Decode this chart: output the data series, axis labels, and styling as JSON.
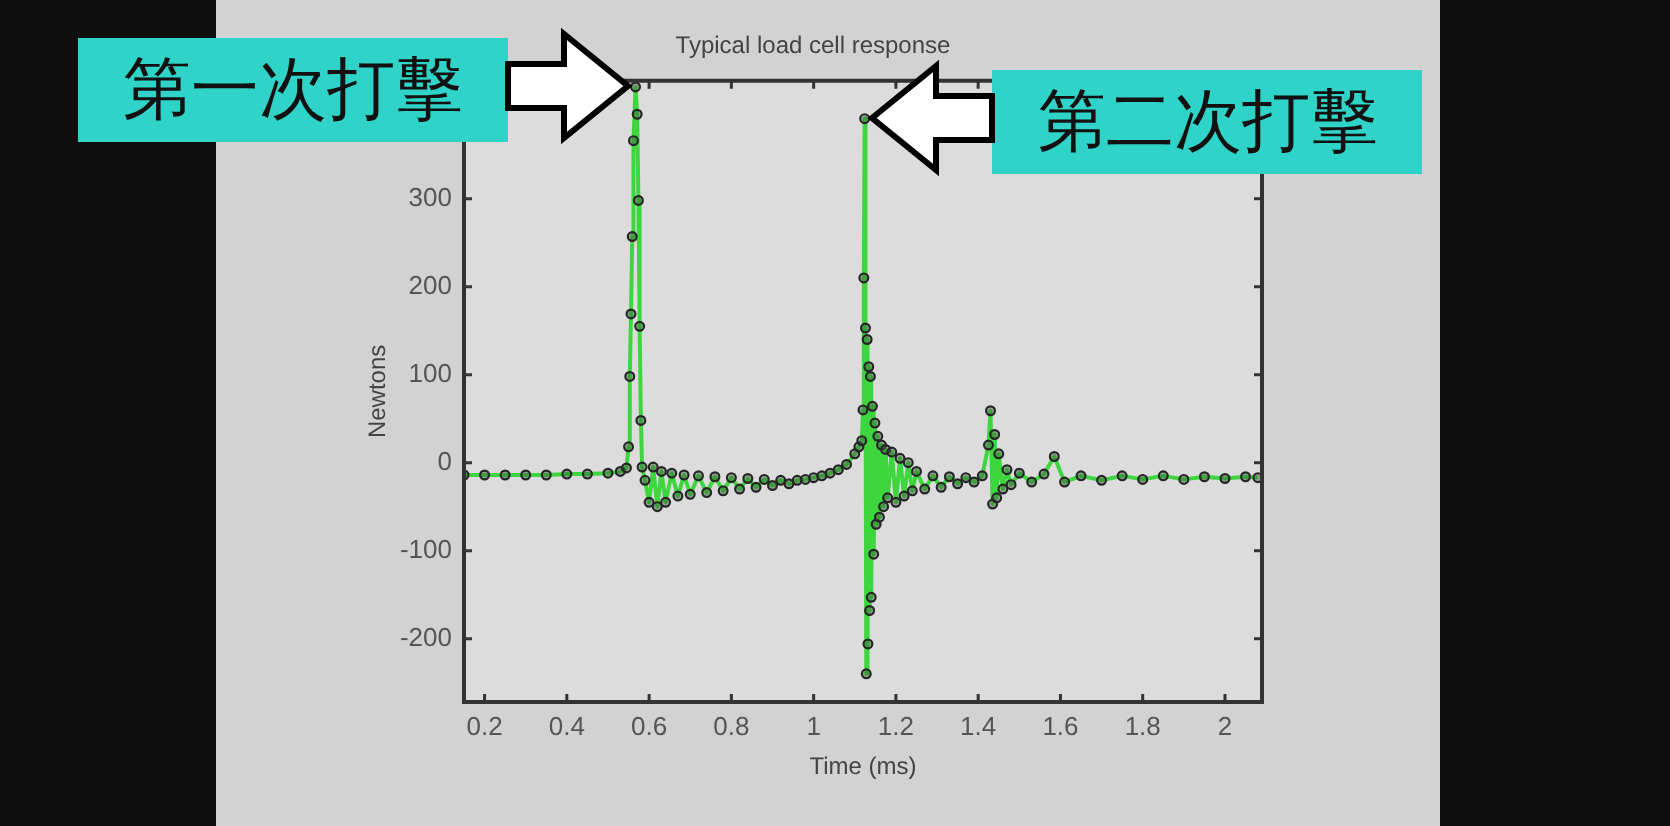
{
  "chart_data": {
    "type": "line",
    "title": "Typical load cell response",
    "xlabel": "Time (ms)",
    "ylabel": "Newtons",
    "x": [
      0.15,
      0.2,
      0.25,
      0.3,
      0.35,
      0.4,
      0.45,
      0.5,
      0.53,
      0.545,
      0.55,
      0.553,
      0.556,
      0.559,
      0.562,
      0.567,
      0.571,
      0.574,
      0.577,
      0.58,
      0.583,
      0.59,
      0.6,
      0.61,
      0.62,
      0.63,
      0.64,
      0.655,
      0.67,
      0.685,
      0.7,
      0.72,
      0.74,
      0.76,
      0.78,
      0.8,
      0.82,
      0.84,
      0.86,
      0.88,
      0.9,
      0.92,
      0.94,
      0.96,
      0.98,
      1,
      1.02,
      1.04,
      1.06,
      1.08,
      1.1,
      1.11,
      1.117,
      1.12,
      1.122,
      1.124,
      1.126,
      1.128,
      1.13,
      1.132,
      1.134,
      1.136,
      1.138,
      1.14,
      1.143,
      1.146,
      1.149,
      1.152,
      1.156,
      1.16,
      1.165,
      1.17,
      1.175,
      1.18,
      1.19,
      1.2,
      1.21,
      1.22,
      1.23,
      1.24,
      1.25,
      1.27,
      1.29,
      1.31,
      1.33,
      1.35,
      1.37,
      1.39,
      1.41,
      1.425,
      1.43,
      1.435,
      1.44,
      1.445,
      1.45,
      1.46,
      1.47,
      1.48,
      1.5,
      1.53,
      1.56,
      1.585,
      1.61,
      1.65,
      1.7,
      1.75,
      1.8,
      1.85,
      1.9,
      1.95,
      2,
      2.05,
      2.08
    ],
    "series": [
      {
        "color": "#3ed63e",
        "values": [
          -14,
          -14,
          -14,
          -14,
          -14,
          -13,
          -13,
          -12,
          -10,
          -6,
          18,
          98,
          169,
          257,
          366,
          427,
          396,
          298,
          155,
          48,
          -5,
          -20,
          -45,
          -5,
          -50,
          -10,
          -45,
          -12,
          -38,
          -14,
          -36,
          -15,
          -34,
          -16,
          -32,
          -17,
          -30,
          -18,
          -28,
          -19,
          -26,
          -20,
          -24,
          -20,
          -19,
          -17,
          -15,
          -12,
          -8,
          -2,
          10,
          18,
          25,
          60,
          210,
          391,
          153,
          -240,
          140,
          -206,
          109,
          -168,
          98,
          -153,
          64,
          -104,
          45,
          -70,
          30,
          -62,
          20,
          -50,
          15,
          -40,
          12,
          -45,
          5,
          -38,
          0,
          -32,
          -10,
          -30,
          -15,
          -28,
          -16,
          -24,
          -17,
          -22,
          -15,
          20,
          59,
          -47,
          32,
          -40,
          10,
          -30,
          -8,
          -25,
          -12,
          -22,
          -13,
          7,
          -22,
          -15,
          -20,
          -15,
          -19,
          -15,
          -19,
          -16,
          -18,
          -16,
          -17
        ]
      }
    ],
    "xlim": [
      0.15,
      2.09
    ],
    "ylim": [
      -272,
      434
    ],
    "xticks": [
      0.2,
      0.4,
      0.6,
      0.8,
      1,
      1.2,
      1.4,
      1.6,
      1.8,
      2
    ],
    "yticks": [
      -200,
      -100,
      0,
      100,
      200,
      300
    ],
    "marker": "circle",
    "line_style": "solid",
    "annotations": [
      {
        "text": "第一次打擊",
        "x": 0.567,
        "y": 427
      },
      {
        "text": "第二次打擊",
        "x": 1.124,
        "y": 391
      }
    ]
  }
}
